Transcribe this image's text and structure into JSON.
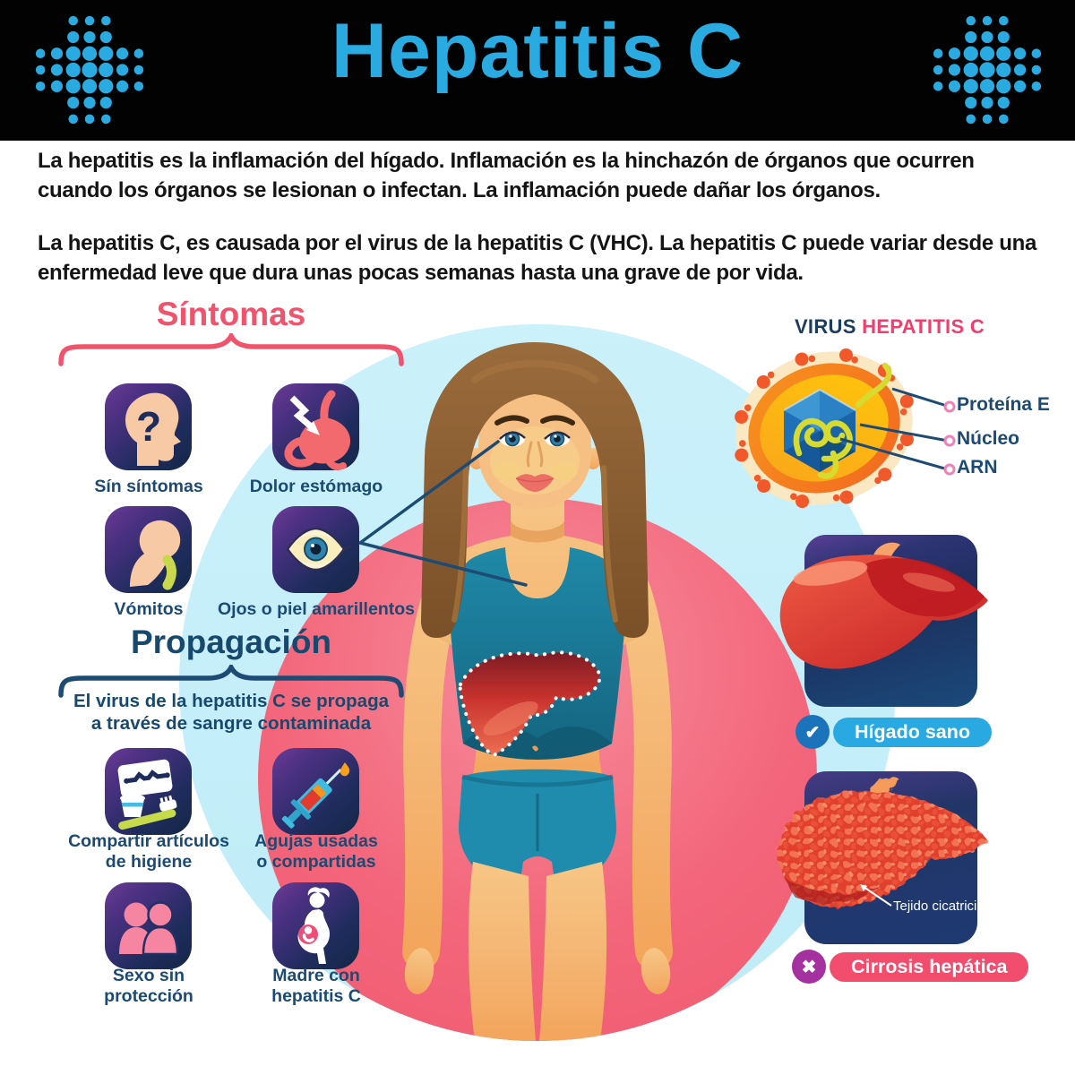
{
  "colors": {
    "accent_blue": "#29ABE2",
    "accent_pink": "#F2415F",
    "navy": "#1B4A74",
    "header_bg": "#000000",
    "scene_blue": "#C5EFF9",
    "scene_pink": "#F3667B"
  },
  "header": {
    "title": "Hepatitis C"
  },
  "intro": {
    "p1": "La hepatitis es la inflamación del hígado. Inflamación es la hinchazón de órganos que ocurren cuando los órganos se lesionan o infectan. La inflamación puede dañar los órganos.",
    "p2": "La hepatitis C, es causada por el virus de la hepatitis C (VHC). La hepatitis C puede variar desde una enfermedad leve que dura unas pocas semanas hasta una grave de por vida."
  },
  "symptoms": {
    "title": "Síntomas",
    "items": [
      {
        "label": "Sín síntomas",
        "icon": "no-symptoms"
      },
      {
        "label": "Dolor estómago",
        "icon": "stomach-pain"
      },
      {
        "label": "Vómitos",
        "icon": "vomiting"
      },
      {
        "label": "Ojos o piel amarillentos",
        "icon": "yellow-eyes-skin"
      }
    ]
  },
  "spread": {
    "title": "Propagación",
    "subtitle1": "El virus de la hepatitis C se propaga",
    "subtitle2": "a través de sangre contaminada",
    "items": [
      {
        "line1": "Compartir artículos",
        "line2": "de higiene",
        "icon": "shared-hygiene-items"
      },
      {
        "line1": "Agujas usadas",
        "line2": "o compartidas",
        "icon": "used-needles"
      },
      {
        "line1": "Sexo sin",
        "line2": "protección",
        "icon": "unprotected-sex"
      },
      {
        "line1": "Madre con",
        "line2": "hepatitis C",
        "icon": "mother-with-hepatitis"
      }
    ]
  },
  "virus": {
    "title_prefix": "VIRUS",
    "title_accent": "HEPATITIS C",
    "labels": [
      {
        "text": "Proteína E"
      },
      {
        "text": "Núcleo"
      },
      {
        "text": "ARN"
      }
    ]
  },
  "livers": {
    "healthy": "Hígado sano",
    "cirrhosis": "Cirrosis hepática",
    "scar": "Tejido cicatricial"
  }
}
